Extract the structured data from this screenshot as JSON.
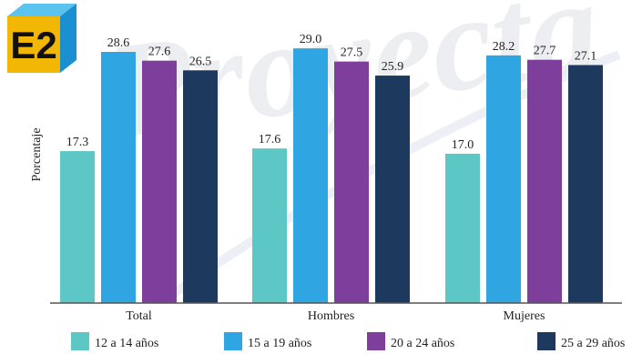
{
  "logo": {
    "text": "E2"
  },
  "watermark": {
    "text": "Proyecta"
  },
  "colors": {
    "series": [
      "#5cc7c5",
      "#2fa6e2",
      "#7e3f9c",
      "#1d3a5e"
    ],
    "axis": "#555555",
    "text": "#222222",
    "logo_bg": "#f2b705",
    "logo_side": "#1a8fd1",
    "logo_top": "#5bc4ee"
  },
  "chart_data": {
    "type": "bar",
    "title": "",
    "xlabel": "",
    "ylabel": "Porcentaje",
    "ylim": [
      0,
      30
    ],
    "grid": false,
    "legend_position": "bottom",
    "categories": [
      "Total",
      "Hombres",
      "Mujeres"
    ],
    "series": [
      {
        "name": "12 a 14 años",
        "values": [
          17.3,
          17.6,
          17.0
        ]
      },
      {
        "name": "15 a 19 años",
        "values": [
          28.6,
          29.0,
          28.2
        ]
      },
      {
        "name": "20 a 24 años",
        "values": [
          27.6,
          27.5,
          27.7
        ]
      },
      {
        "name": "25 a 29 años",
        "values": [
          26.5,
          25.9,
          27.1
        ]
      }
    ]
  }
}
